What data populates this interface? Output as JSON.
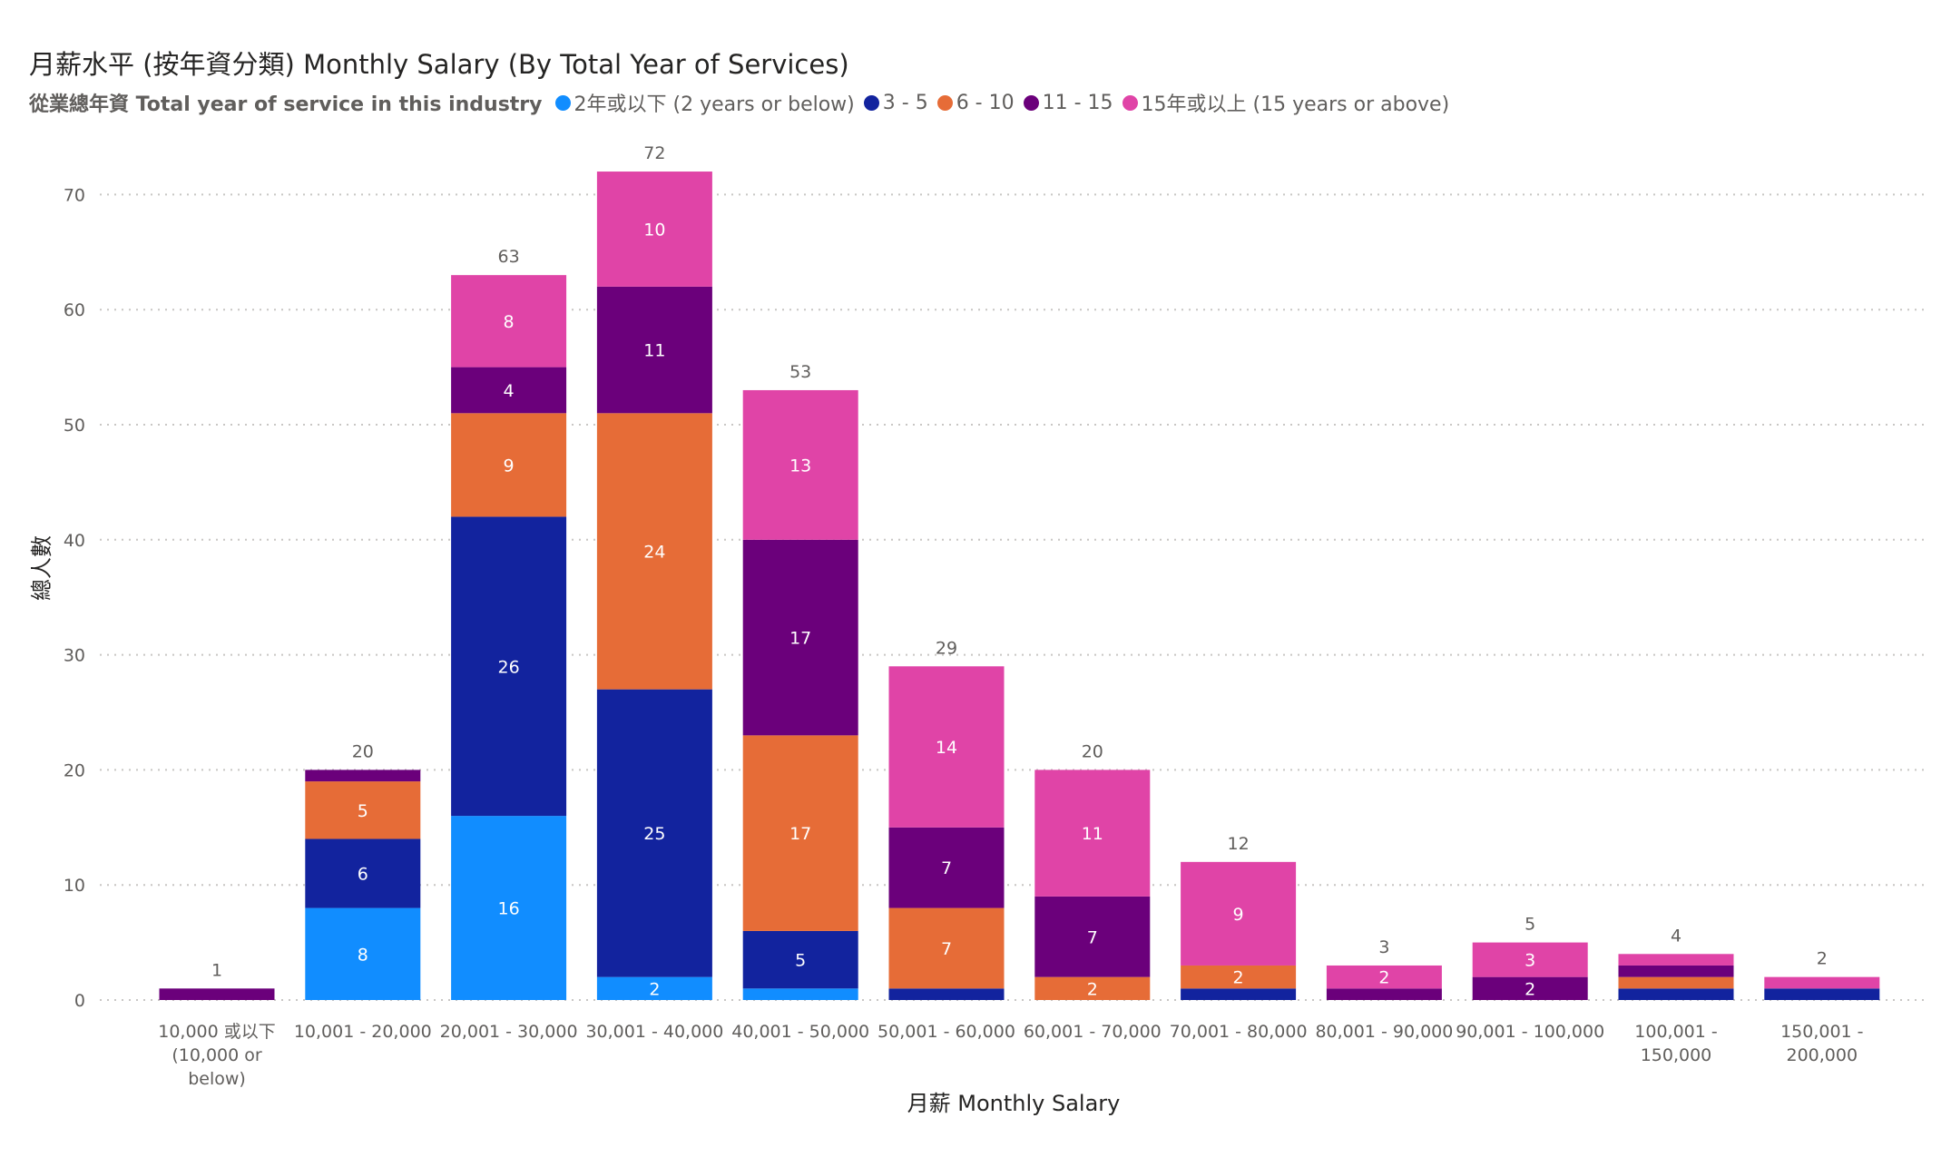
{
  "chart_data": {
    "type": "bar",
    "stacked": true,
    "title": "月薪水平 (按年資分類) Monthly Salary (By Total Year of Services)",
    "legend_title": "從業總年資 Total year of service in this industry",
    "legend_position": "top-left",
    "xlabel": "月薪 Monthly Salary",
    "ylabel": "總人數",
    "ylim": [
      0,
      72
    ],
    "yticks": [
      "0",
      "10",
      "20",
      "30",
      "40",
      "50",
      "60",
      "70"
    ],
    "grid": true,
    "categories": [
      [
        "10,000 或以下",
        "(10,000 or",
        "below)"
      ],
      [
        "10,001 - 20,000"
      ],
      [
        "20,001 - 30,000"
      ],
      [
        "30,001 - 40,000"
      ],
      [
        "40,001 - 50,000"
      ],
      [
        "50,001 - 60,000"
      ],
      [
        "60,001 - 70,000"
      ],
      [
        "70,001 - 80,000"
      ],
      [
        "80,001 - 90,000"
      ],
      [
        "90,001 - 100,000"
      ],
      [
        "100,001 -",
        "150,000"
      ],
      [
        "150,001 -",
        "200,000"
      ]
    ],
    "series": [
      {
        "name": "2年或以下 (2 years or below)",
        "color": "#118dff",
        "values": [
          0,
          8,
          16,
          2,
          1,
          0,
          0,
          0,
          0,
          0,
          0,
          0
        ],
        "labels": [
          "",
          "8",
          "16",
          "2",
          "",
          "",
          "",
          "",
          "",
          "",
          "",
          ""
        ]
      },
      {
        "name": "3 - 5",
        "color": "#12239e",
        "values": [
          0,
          6,
          26,
          25,
          5,
          1,
          0,
          1,
          0,
          0,
          1,
          1
        ],
        "labels": [
          "",
          "6",
          "26",
          "25",
          "5",
          "",
          "",
          "",
          "",
          "",
          "",
          ""
        ]
      },
      {
        "name": "6 - 10",
        "color": "#e66c37",
        "values": [
          0,
          5,
          9,
          24,
          17,
          7,
          2,
          2,
          0,
          0,
          1,
          0
        ],
        "labels": [
          "",
          "5",
          "9",
          "24",
          "17",
          "7",
          "2",
          "2",
          "",
          "",
          "",
          ""
        ]
      },
      {
        "name": "11 - 15",
        "color": "#6b007b",
        "values": [
          1,
          1,
          4,
          11,
          17,
          7,
          7,
          0,
          1,
          2,
          1,
          0
        ],
        "labels": [
          "",
          "",
          "4",
          "11",
          "17",
          "7",
          "7",
          "",
          "",
          "2",
          "",
          ""
        ]
      },
      {
        "name": "15年或以上 (15 years or above)",
        "color": "#e044a7",
        "values": [
          0,
          0,
          8,
          10,
          13,
          14,
          11,
          9,
          2,
          3,
          1,
          1
        ],
        "labels": [
          "",
          "",
          "8",
          "10",
          "13",
          "14",
          "11",
          "9",
          "2",
          "3",
          "",
          ""
        ]
      }
    ],
    "totals": [
      "1",
      "20",
      "63",
      "72",
      "53",
      "29",
      "20",
      "12",
      "3",
      "5",
      "4",
      "2"
    ]
  }
}
